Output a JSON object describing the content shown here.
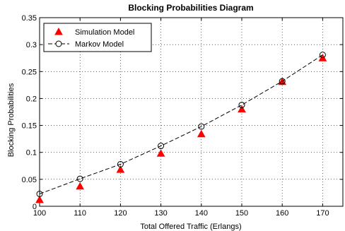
{
  "chart_data": {
    "type": "scatter",
    "title": "Blocking Probabilities Diagram",
    "xlabel": "Total Offered Traffic (Erlangs)",
    "ylabel": "Blocking Probabilities",
    "xlim": [
      100,
      175
    ],
    "ylim": [
      0,
      0.35
    ],
    "xticks": [
      100,
      110,
      120,
      130,
      140,
      150,
      160,
      170
    ],
    "yticks": [
      "0",
      "0.05",
      "0.1",
      "0.15",
      "0.2",
      "0.25",
      "0.3",
      "0.35"
    ],
    "grid": true,
    "legend_position": "top-left",
    "x": [
      100,
      110,
      120,
      130,
      140,
      150,
      160,
      170
    ],
    "series": [
      {
        "name": "Simulation Model",
        "marker": "triangle",
        "color": "#ff0000",
        "values": [
          0.012,
          0.037,
          0.068,
          0.098,
          0.134,
          0.18,
          0.231,
          0.275
        ]
      },
      {
        "name": "Markov Model",
        "marker": "circle",
        "line": "dashed",
        "color": "#000000",
        "values": [
          0.023,
          0.051,
          0.078,
          0.112,
          0.148,
          0.188,
          0.232,
          0.281
        ]
      }
    ]
  }
}
